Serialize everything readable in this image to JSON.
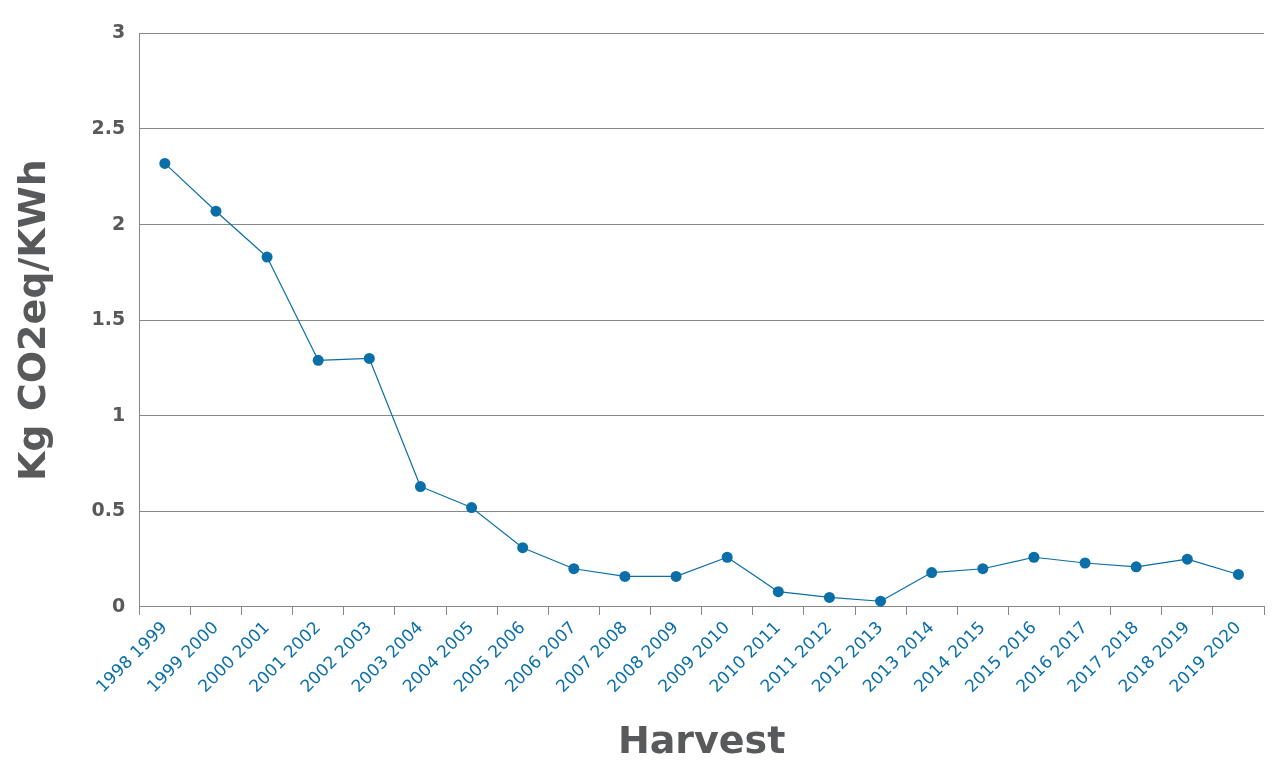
{
  "chart_data": {
    "type": "line",
    "xlabel": "Harvest",
    "ylabel": "Kg CO2eq/KWh",
    "categories": [
      "1998 1999",
      "1999 2000",
      "2000 2001",
      "2001 2002",
      "2002 2003",
      "2003 2004",
      "2004 2005",
      "2005 2006",
      "2006 2007",
      "2007 2008",
      "2008 2009",
      "2009 2010",
      "2010 2011",
      "2011 2012",
      "2012 2013",
      "2013 2014",
      "2014 2015",
      "2015 2016",
      "2016 2017",
      "2017 2018",
      "2018 2019",
      "2019 2020"
    ],
    "series": [
      {
        "color": "#0a6fa8",
        "values": [
          2.32,
          2.07,
          1.83,
          1.29,
          1.3,
          0.63,
          0.52,
          0.31,
          0.2,
          0.16,
          0.16,
          0.26,
          0.08,
          0.05,
          0.03,
          0.18,
          0.2,
          0.26,
          0.23,
          0.21,
          0.25,
          0.17
        ]
      }
    ],
    "ylim": [
      0,
      3
    ],
    "yticks": [
      0,
      0.5,
      1,
      1.5,
      2,
      2.5,
      3
    ],
    "grid": "y",
    "marker": "circle",
    "line_style": "solid",
    "legend": false
  }
}
